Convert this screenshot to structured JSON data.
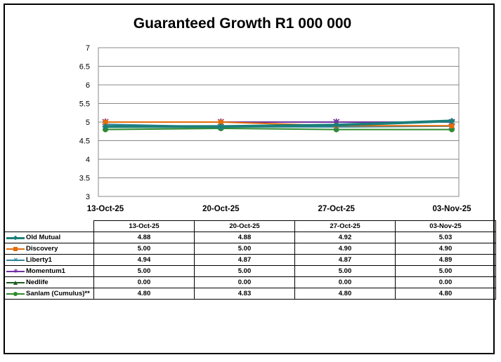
{
  "chart_data": {
    "type": "line",
    "title": "Guaranteed Growth R1 000 000",
    "categories": [
      "13-Oct-25",
      "20-Oct-25",
      "27-Oct-25",
      "03-Nov-25"
    ],
    "ylim": [
      3,
      7
    ],
    "yticks": [
      "7",
      "6.5",
      "6",
      "5.5",
      "5",
      "4.5",
      "4",
      "3.5",
      "3"
    ],
    "grid": true,
    "series": [
      {
        "name": "Old Mutual",
        "values": [
          4.88,
          4.88,
          4.92,
          5.03
        ],
        "color": "#1b7f7a",
        "marker": "diamond",
        "labels": [
          "4.88",
          "4.88",
          "4.92",
          "5.03"
        ]
      },
      {
        "name": "Discovery",
        "values": [
          5.0,
          5.0,
          4.9,
          4.9
        ],
        "color": "#e46c0a",
        "marker": "square",
        "labels": [
          "5.00",
          "5.00",
          "4.90",
          "4.90"
        ]
      },
      {
        "name": "Liberty1",
        "values": [
          4.94,
          4.87,
          4.87,
          4.89
        ],
        "color": "#31859c",
        "marker": "x",
        "labels": [
          "4.94",
          "4.87",
          "4.87",
          "4.89"
        ]
      },
      {
        "name": "Momentum1",
        "values": [
          5.0,
          5.0,
          5.0,
          5.0
        ],
        "color": "#7030a0",
        "marker": "star",
        "labels": [
          "5.00",
          "5.00",
          "5.00",
          "5.00"
        ]
      },
      {
        "name": "Nedlife",
        "values": [
          0.0,
          0.0,
          0.0,
          0.0
        ],
        "color": "#1e5c1e",
        "marker": "triangle",
        "labels": [
          "0.00",
          "0.00",
          "0.00",
          "0.00"
        ]
      },
      {
        "name": "Sanlam (Cumulus)**",
        "values": [
          4.8,
          4.83,
          4.8,
          4.8
        ],
        "color": "#2d8a2d",
        "marker": "circle",
        "labels": [
          "4.80",
          "4.83",
          "4.80",
          "4.80"
        ]
      }
    ]
  }
}
